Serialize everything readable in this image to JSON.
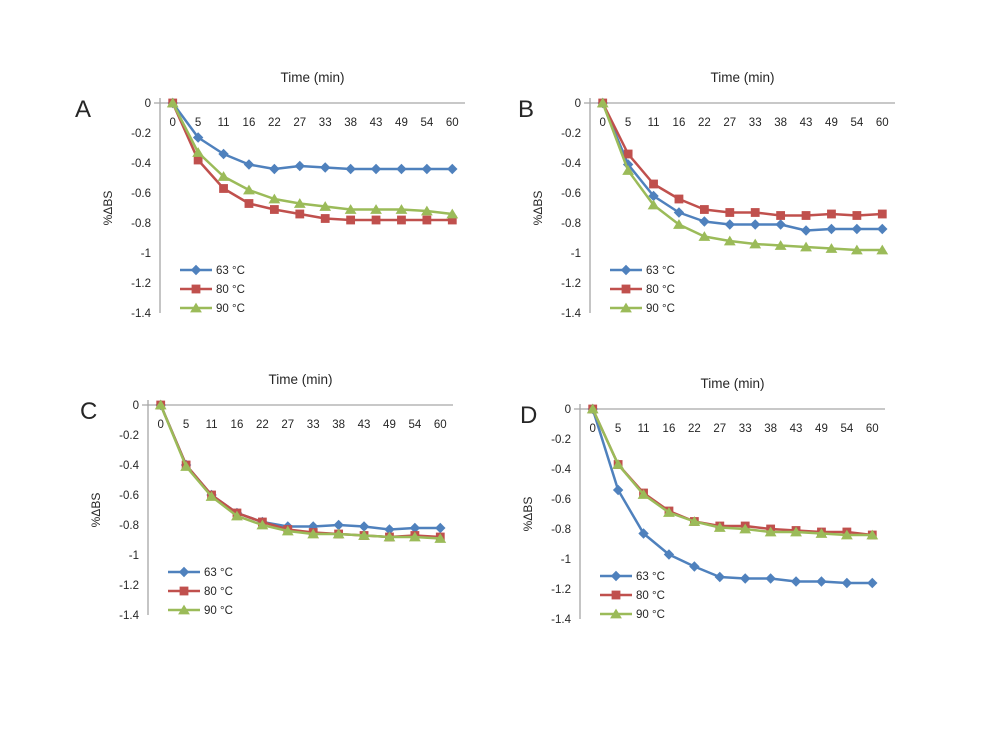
{
  "figure": {
    "background": "#ffffff",
    "axis_color": "#a6a6a6",
    "text_color": "#262626"
  },
  "chart_data": [
    {
      "type": "line",
      "panel_label": "A",
      "title": "Time (min)",
      "ylabel": "%ΔBS",
      "x_tick_labels": [
        "0",
        "5",
        "11",
        "16",
        "22",
        "27",
        "33",
        "38",
        "43",
        "49",
        "54",
        "60"
      ],
      "x_values": [
        0,
        5,
        11,
        16,
        22,
        27,
        33,
        38,
        43,
        49,
        54,
        60
      ],
      "y_tick_labels": [
        "0",
        "-0.2",
        "-0.4",
        "-0.6",
        "-0.8",
        "-1",
        "-1.2",
        "-1.4"
      ],
      "y_tick_values": [
        0,
        -0.2,
        -0.4,
        -0.6,
        -0.8,
        -1,
        -1.2,
        -1.4
      ],
      "ylim": [
        -1.4,
        0
      ],
      "grid": false,
      "legend_position": "inside-lower-left",
      "series": [
        {
          "name": "63 °C",
          "marker": "diamond",
          "color": "#4f81bd",
          "values": [
            0,
            -0.23,
            -0.34,
            -0.41,
            -0.44,
            -0.42,
            -0.43,
            -0.44,
            -0.44,
            -0.44,
            -0.44,
            -0.44
          ]
        },
        {
          "name": "80 °C",
          "marker": "square",
          "color": "#c0504d",
          "values": [
            0,
            -0.38,
            -0.57,
            -0.67,
            -0.71,
            -0.74,
            -0.77,
            -0.78,
            -0.78,
            -0.78,
            -0.78,
            -0.78
          ]
        },
        {
          "name": "90 °C",
          "marker": "triangle",
          "color": "#9bbb59",
          "values": [
            0,
            -0.33,
            -0.49,
            -0.58,
            -0.64,
            -0.67,
            -0.69,
            -0.71,
            -0.71,
            -0.71,
            -0.72,
            -0.74
          ]
        }
      ]
    },
    {
      "type": "line",
      "panel_label": "B",
      "title": "Time (min)",
      "ylabel": "%ΔBS",
      "x_tick_labels": [
        "0",
        "5",
        "11",
        "16",
        "22",
        "27",
        "33",
        "38",
        "43",
        "49",
        "54",
        "60"
      ],
      "x_values": [
        0,
        5,
        11,
        16,
        22,
        27,
        33,
        38,
        43,
        49,
        54,
        60
      ],
      "y_tick_labels": [
        "0",
        "-0.2",
        "-0.4",
        "-0.6",
        "-0.8",
        "-1",
        "-1.2",
        "-1.4"
      ],
      "y_tick_values": [
        0,
        -0.2,
        -0.4,
        -0.6,
        -0.8,
        -1,
        -1.2,
        -1.4
      ],
      "ylim": [
        -1.4,
        0
      ],
      "grid": false,
      "legend_position": "inside-lower-left",
      "series": [
        {
          "name": "63 °C",
          "marker": "diamond",
          "color": "#4f81bd",
          "values": [
            0,
            -0.41,
            -0.62,
            -0.73,
            -0.79,
            -0.81,
            -0.81,
            -0.81,
            -0.85,
            -0.84,
            -0.84,
            -0.84
          ]
        },
        {
          "name": "80 °C",
          "marker": "square",
          "color": "#c0504d",
          "values": [
            0,
            -0.34,
            -0.54,
            -0.64,
            -0.71,
            -0.73,
            -0.73,
            -0.75,
            -0.75,
            -0.74,
            -0.75,
            -0.74
          ]
        },
        {
          "name": "90 °C",
          "marker": "triangle",
          "color": "#9bbb59",
          "values": [
            0,
            -0.45,
            -0.68,
            -0.81,
            -0.89,
            -0.92,
            -0.94,
            -0.95,
            -0.96,
            -0.97,
            -0.98,
            -0.98
          ]
        }
      ]
    },
    {
      "type": "line",
      "panel_label": "C",
      "title": "Time (min)",
      "ylabel": "%ΔBS",
      "x_tick_labels": [
        "0",
        "5",
        "11",
        "16",
        "22",
        "27",
        "33",
        "38",
        "43",
        "49",
        "54",
        "60"
      ],
      "x_values": [
        0,
        5,
        11,
        16,
        22,
        27,
        33,
        38,
        43,
        49,
        54,
        60
      ],
      "y_tick_labels": [
        "0",
        "-0.2",
        "-0.4",
        "-0.6",
        "-0.8",
        "-1",
        "-1.2",
        "-1.4"
      ],
      "y_tick_values": [
        0,
        -0.2,
        -0.4,
        -0.6,
        -0.8,
        -1,
        -1.2,
        -1.4
      ],
      "ylim": [
        -1.4,
        0
      ],
      "grid": false,
      "legend_position": "inside-lower-left",
      "series": [
        {
          "name": "63 °C",
          "marker": "diamond",
          "color": "#4f81bd",
          "values": [
            0,
            -0.4,
            -0.6,
            -0.72,
            -0.78,
            -0.81,
            -0.81,
            -0.8,
            -0.81,
            -0.83,
            -0.82,
            -0.82
          ]
        },
        {
          "name": "80 °C",
          "marker": "square",
          "color": "#c0504d",
          "values": [
            0,
            -0.4,
            -0.6,
            -0.72,
            -0.78,
            -0.83,
            -0.85,
            -0.86,
            -0.87,
            -0.88,
            -0.87,
            -0.88
          ]
        },
        {
          "name": "90 °C",
          "marker": "triangle",
          "color": "#9bbb59",
          "values": [
            0,
            -0.41,
            -0.61,
            -0.74,
            -0.8,
            -0.84,
            -0.86,
            -0.86,
            -0.87,
            -0.88,
            -0.88,
            -0.89
          ]
        }
      ]
    },
    {
      "type": "line",
      "panel_label": "D",
      "title": "Time (min)",
      "ylabel": "%ΔBS",
      "x_tick_labels": [
        "0",
        "5",
        "11",
        "16",
        "22",
        "27",
        "33",
        "38",
        "43",
        "49",
        "54",
        "60"
      ],
      "x_values": [
        0,
        5,
        11,
        16,
        22,
        27,
        33,
        38,
        43,
        49,
        54,
        60
      ],
      "y_tick_labels": [
        "0",
        "-0.2",
        "-0.4",
        "-0.6",
        "-0.8",
        "-1",
        "-1.2",
        "-1.4"
      ],
      "y_tick_values": [
        0,
        -0.2,
        -0.4,
        -0.6,
        -0.8,
        -1,
        -1.2,
        -1.4
      ],
      "ylim": [
        -1.4,
        0
      ],
      "grid": false,
      "legend_position": "inside-lower-left",
      "series": [
        {
          "name": "63 °C",
          "marker": "diamond",
          "color": "#4f81bd",
          "values": [
            0,
            -0.54,
            -0.83,
            -0.97,
            -1.05,
            -1.12,
            -1.13,
            -1.13,
            -1.15,
            -1.15,
            -1.16,
            -1.16
          ]
        },
        {
          "name": "80 °C",
          "marker": "square",
          "color": "#c0504d",
          "values": [
            0,
            -0.37,
            -0.56,
            -0.68,
            -0.75,
            -0.78,
            -0.78,
            -0.8,
            -0.81,
            -0.82,
            -0.82,
            -0.84
          ]
        },
        {
          "name": "90 °C",
          "marker": "triangle",
          "color": "#9bbb59",
          "values": [
            0,
            -0.37,
            -0.57,
            -0.69,
            -0.75,
            -0.79,
            -0.8,
            -0.82,
            -0.82,
            -0.83,
            -0.84,
            -0.84
          ]
        }
      ]
    }
  ]
}
